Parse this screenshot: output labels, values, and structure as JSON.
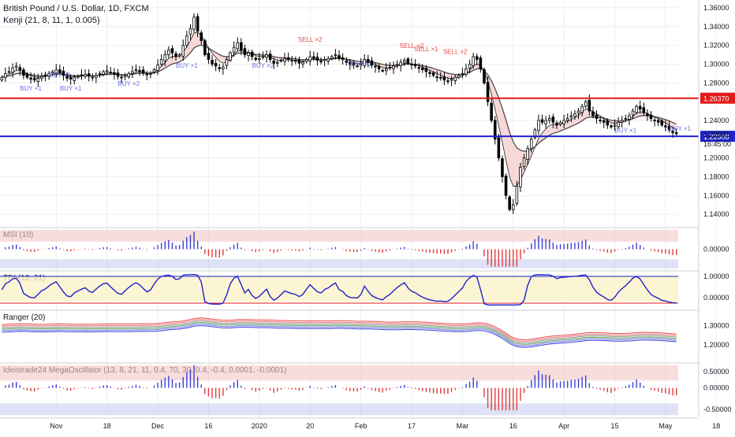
{
  "title": "British Pound / U.S. Dollar, 1D, FXCM",
  "indicator_label": "Kenji (21, 8, 11, 1, 0.005)",
  "colors": {
    "up": "#ffffff",
    "down": "#000000",
    "red_line": "#e31b1b",
    "blue_line": "#1e22c8",
    "band_fill": "#f4c7c7",
    "band_fill_blue": "#c9cdf0",
    "blue_marker": "#6a6ee8",
    "red_marker": "#e84848",
    "grid": "#eeeeee"
  },
  "chart_data": {
    "type": "candlestick",
    "ylim": [
      1.13,
      1.365
    ],
    "y_ticks": [
      "1.36000",
      "1.34000",
      "1.32000",
      "1.30000",
      "1.28000",
      "1.24000",
      "1.20000",
      "1.18000",
      "1.16000",
      "1.14000"
    ],
    "y_tick_values": [
      1.36,
      1.34,
      1.32,
      1.3,
      1.28,
      1.24,
      1.2,
      1.18,
      1.16,
      1.14
    ],
    "x_ticks": [
      "Nov",
      "18",
      "Dec",
      "16",
      "2020",
      "20",
      "Feb",
      "17",
      "Mar",
      "16",
      "Apr",
      "15",
      "May",
      "18"
    ],
    "x_tick_index": [
      15,
      29,
      43,
      57,
      71,
      85,
      99,
      113,
      127,
      141,
      155,
      169,
      183,
      197
    ],
    "last_price": "1.22581",
    "countdown": "16:45:00",
    "hlines": [
      {
        "value": 1.2637,
        "label": "1.26370",
        "color": "#e31b1b"
      },
      {
        "value": 1.22308,
        "label": "1.22308",
        "color": "#1e22c8"
      }
    ],
    "signals": [
      {
        "text": "BUY ×1",
        "index": 8,
        "price": 1.272,
        "kind": "buy"
      },
      {
        "text": "BUY ×1",
        "index": 16,
        "price": 1.286,
        "kind": "buy"
      },
      {
        "text": "BUY ×1",
        "index": 19,
        "price": 1.272,
        "kind": "buy"
      },
      {
        "text": "BUY ×2",
        "index": 35,
        "price": 1.277,
        "kind": "buy"
      },
      {
        "text": "BUY ×1",
        "index": 51,
        "price": 1.296,
        "kind": "buy"
      },
      {
        "text": "BUY ×2",
        "index": 72,
        "price": 1.296,
        "kind": "buy"
      },
      {
        "text": "SELL ×2",
        "index": 85,
        "price": 1.324,
        "kind": "sell"
      },
      {
        "text": "BUY ×1",
        "index": 99,
        "price": 1.298,
        "kind": "buy"
      },
      {
        "text": "SELL ×2",
        "index": 113,
        "price": 1.317,
        "kind": "sell"
      },
      {
        "text": "SELL ×1",
        "index": 117,
        "price": 1.314,
        "kind": "sell"
      },
      {
        "text": "SELL ×2",
        "index": 125,
        "price": 1.311,
        "kind": "sell"
      },
      {
        "text": "BUY ×1",
        "index": 172,
        "price": 1.227,
        "kind": "buy"
      },
      {
        "text": "BUY ×1",
        "index": 187,
        "price": 1.229,
        "kind": "buy"
      }
    ],
    "closes": [
      1.286,
      1.29,
      1.292,
      1.296,
      1.298,
      1.294,
      1.288,
      1.286,
      1.284,
      1.283,
      1.285,
      1.287,
      1.288,
      1.29,
      1.292,
      1.294,
      1.291,
      1.288,
      1.285,
      1.284,
      1.286,
      1.287,
      1.288,
      1.289,
      1.287,
      1.286,
      1.288,
      1.29,
      1.292,
      1.293,
      1.291,
      1.289,
      1.287,
      1.286,
      1.288,
      1.29,
      1.292,
      1.294,
      1.293,
      1.291,
      1.289,
      1.29,
      1.294,
      1.299,
      1.305,
      1.31,
      1.315,
      1.312,
      1.308,
      1.31,
      1.32,
      1.33,
      1.338,
      1.35,
      1.335,
      1.325,
      1.31,
      1.305,
      1.3,
      1.298,
      1.295,
      1.297,
      1.305,
      1.312,
      1.318,
      1.323,
      1.315,
      1.31,
      1.312,
      1.308,
      1.305,
      1.306,
      1.308,
      1.31,
      1.305,
      1.301,
      1.302,
      1.304,
      1.306,
      1.305,
      1.304,
      1.303,
      1.301,
      1.302,
      1.305,
      1.308,
      1.306,
      1.304,
      1.303,
      1.305,
      1.306,
      1.308,
      1.31,
      1.306,
      1.305,
      1.302,
      1.3,
      1.299,
      1.298,
      1.3,
      1.305,
      1.302,
      1.299,
      1.297,
      1.295,
      1.293,
      1.295,
      1.296,
      1.298,
      1.3,
      1.302,
      1.304,
      1.301,
      1.299,
      1.298,
      1.296,
      1.294,
      1.292,
      1.29,
      1.288,
      1.286,
      1.285,
      1.283,
      1.282,
      1.284,
      1.286,
      1.288,
      1.29,
      1.295,
      1.3,
      1.308,
      1.305,
      1.295,
      1.28,
      1.26,
      1.24,
      1.22,
      1.2,
      1.18,
      1.16,
      1.145,
      1.15,
      1.17,
      1.19,
      1.2,
      1.21,
      1.22,
      1.23,
      1.24,
      1.238,
      1.24,
      1.242,
      1.238,
      1.235,
      1.238,
      1.24,
      1.242,
      1.245,
      1.247,
      1.25,
      1.255,
      1.26,
      1.25,
      1.245,
      1.242,
      1.24,
      1.238,
      1.235,
      1.233,
      1.235,
      1.238,
      1.24,
      1.242,
      1.245,
      1.25,
      1.255,
      1.252,
      1.248,
      1.245,
      1.242,
      1.24,
      1.238,
      1.235,
      1.233,
      1.23,
      1.227,
      1.2258
    ]
  },
  "panels": [
    {
      "id": "msi",
      "label": "MSI (10)",
      "ticks": [
        "0.00000"
      ],
      "tick_values": [
        0
      ]
    },
    {
      "id": "tdi",
      "label": "TDI (13, 21)",
      "ticks": [
        "1.00000",
        "0.00000"
      ],
      "tick_values": [
        1,
        0
      ]
    },
    {
      "id": "ranger",
      "label": "Ranger (20)",
      "ticks": [
        "1.30000",
        "1.20000"
      ],
      "tick_values": [
        1.3,
        1.2
      ]
    },
    {
      "id": "mega",
      "label": "Ideistrade24 MegaOscillator (13, 8, 21, 11, 0.4, 70, 30, 0.4, -0.4, 0.0001, -0.0001)",
      "ticks": [
        "0.50000",
        "0.00000",
        "-0.50000"
      ],
      "tick_values": [
        0.5,
        0,
        -0.5
      ]
    }
  ]
}
